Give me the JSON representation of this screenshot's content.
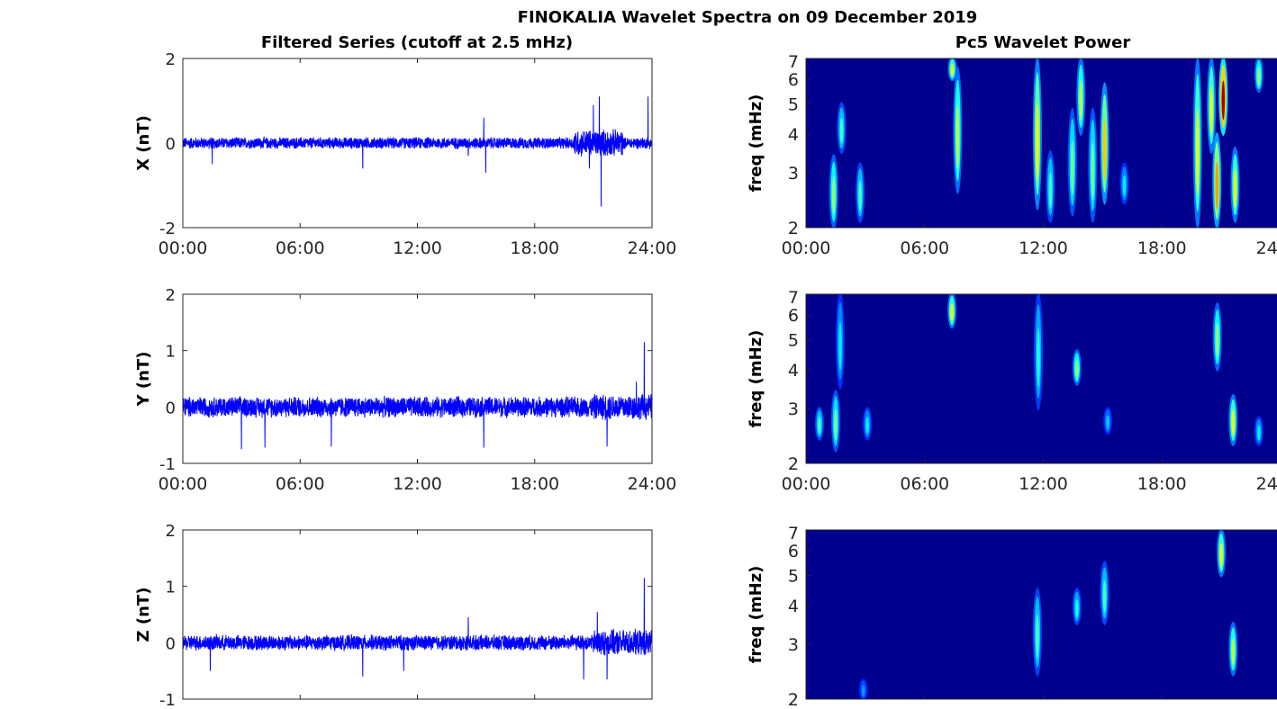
{
  "chart_data": {
    "title": "FINOKALIA Wavelet Spectra on 09 December 2019",
    "left_title": "Filtered Series (cutoff at 2.5 mHz)",
    "right_title": "Pc5 Wavelet Power",
    "x_tick_labels": [
      "00:00",
      "06:00",
      "12:00",
      "18:00",
      "24:00"
    ],
    "x_range_hours": [
      0,
      24
    ],
    "line_color": "#0000ff",
    "series": [
      {
        "type": "line",
        "name": "X",
        "ylabel": "X (nT)",
        "ylim": [
          -2,
          2
        ],
        "yticks": [
          -2,
          0,
          2
        ],
        "noise_amplitude": 0.15,
        "active_window": [
          20,
          22.5,
          0.35
        ],
        "spikes": [
          [
            1.5,
            -0.5
          ],
          [
            9.2,
            -0.6
          ],
          [
            14.6,
            -0.3
          ],
          [
            15.4,
            0.6
          ],
          [
            15.5,
            -0.7
          ],
          [
            20.8,
            -0.6
          ],
          [
            21.0,
            0.9
          ],
          [
            21.3,
            1.1
          ],
          [
            21.4,
            -1.5
          ],
          [
            23.8,
            1.1
          ]
        ],
        "show_xticklabels": true
      },
      {
        "type": "line",
        "name": "Y",
        "ylabel": "Y (nT)",
        "ylim": [
          -1,
          2
        ],
        "yticks": [
          -1,
          0,
          1,
          2
        ],
        "noise_amplitude": 0.2,
        "active_window": [
          21,
          24,
          0.25
        ],
        "spikes": [
          [
            3.0,
            -0.75
          ],
          [
            4.2,
            -0.72
          ],
          [
            7.6,
            -0.7
          ],
          [
            15.4,
            -0.72
          ],
          [
            21.7,
            -0.7
          ],
          [
            23.2,
            0.45
          ],
          [
            23.6,
            1.15
          ]
        ],
        "show_xticklabels": true
      },
      {
        "type": "line",
        "name": "Z",
        "ylabel": "Z (nT)",
        "ylim": [
          -1,
          2
        ],
        "yticks": [
          -1,
          0,
          1,
          2
        ],
        "noise_amplitude": 0.15,
        "active_window": [
          21,
          24,
          0.25
        ],
        "spikes": [
          [
            1.4,
            -0.5
          ],
          [
            9.2,
            -0.6
          ],
          [
            11.3,
            -0.5
          ],
          [
            14.6,
            0.45
          ],
          [
            20.5,
            -0.65
          ],
          [
            21.2,
            0.55
          ],
          [
            21.7,
            -0.65
          ],
          [
            23.6,
            1.15
          ]
        ],
        "show_xticklabels": false
      }
    ],
    "wavelet": [
      {
        "type": "heatmap",
        "ylabel": "freq (mHz)",
        "ylim": [
          2,
          7
        ],
        "yscale": "log",
        "yticks": [
          2,
          3,
          4,
          5,
          6,
          7
        ],
        "show_xticklabels": true,
        "blobs": [
          [
            1.4,
            2.0,
            3.4,
            0.4
          ],
          [
            1.8,
            3.5,
            5.0,
            0.3
          ],
          [
            2.74,
            2.1,
            3.2,
            0.3
          ],
          [
            7.4,
            6.0,
            7.0,
            0.5
          ],
          [
            7.67,
            2.6,
            6.5,
            0.45
          ],
          [
            11.7,
            2.3,
            7.0,
            0.55
          ],
          [
            12.36,
            2.1,
            3.5,
            0.3
          ],
          [
            13.47,
            2.2,
            4.8,
            0.35
          ],
          [
            13.9,
            4.0,
            7.0,
            0.45
          ],
          [
            14.5,
            2.1,
            4.8,
            0.35
          ],
          [
            15.1,
            2.4,
            5.8,
            0.6
          ],
          [
            16.1,
            2.4,
            3.2,
            0.2
          ],
          [
            19.8,
            2.0,
            7.0,
            0.5
          ],
          [
            20.5,
            3.5,
            7.0,
            0.5
          ],
          [
            20.78,
            2.0,
            4.0,
            0.65
          ],
          [
            21.1,
            4.0,
            7.0,
            0.95
          ],
          [
            21.7,
            2.1,
            3.6,
            0.5
          ],
          [
            22.9,
            5.5,
            7.0,
            0.4
          ]
        ]
      },
      {
        "type": "heatmap",
        "ylabel": "freq (mHz)",
        "ylim": [
          2,
          7
        ],
        "yscale": "log",
        "yticks": [
          2,
          3,
          4,
          5,
          6,
          7
        ],
        "show_xticklabels": true,
        "blobs": [
          [
            0.68,
            2.4,
            3.0,
            0.3
          ],
          [
            1.5,
            2.2,
            3.4,
            0.35
          ],
          [
            1.73,
            3.5,
            7.0,
            0.2
          ],
          [
            3.1,
            2.4,
            3.0,
            0.2
          ],
          [
            7.38,
            5.5,
            7.0,
            0.5
          ],
          [
            11.75,
            3.0,
            7.0,
            0.25
          ],
          [
            13.7,
            3.6,
            4.6,
            0.4
          ],
          [
            15.26,
            2.5,
            3.0,
            0.15
          ],
          [
            20.8,
            4.0,
            6.5,
            0.4
          ],
          [
            21.6,
            2.3,
            3.3,
            0.5
          ],
          [
            22.9,
            2.3,
            2.8,
            0.2
          ]
        ]
      },
      {
        "type": "heatmap",
        "ylabel": "freq (mHz)",
        "ylim": [
          2,
          7
        ],
        "yscale": "log",
        "yticks": [
          2,
          3,
          4,
          5,
          6,
          7
        ],
        "show_xticklabels": false,
        "blobs": [
          [
            2.9,
            2.0,
            2.3,
            0.1
          ],
          [
            11.7,
            2.4,
            4.5,
            0.3
          ],
          [
            13.7,
            3.5,
            4.5,
            0.25
          ],
          [
            15.1,
            3.5,
            5.5,
            0.3
          ],
          [
            21.0,
            5.0,
            7.0,
            0.5
          ],
          [
            21.6,
            2.4,
            3.5,
            0.45
          ]
        ]
      }
    ],
    "colormap": "jet",
    "background_color": "#00008f"
  }
}
